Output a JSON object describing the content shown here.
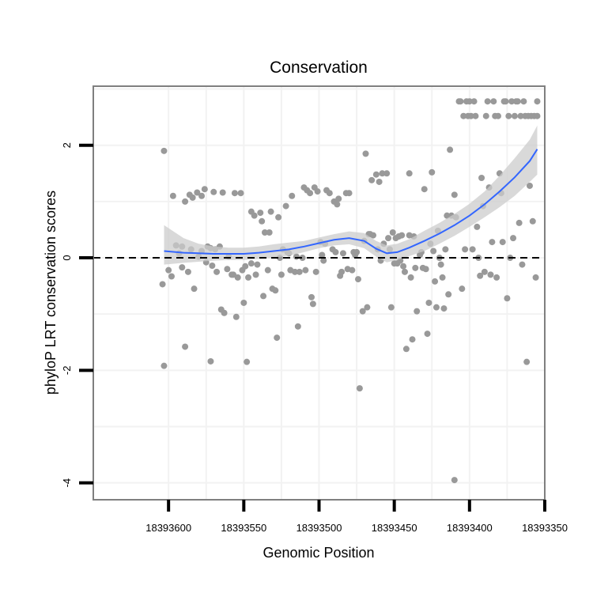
{
  "chart_data": {
    "type": "scatter",
    "title": "Conservation",
    "xlabel": "Genomic Position",
    "ylabel": "phyloP LRT conservation scores",
    "x_reversed": true,
    "xlim": [
      18393650,
      18393350
    ],
    "ylim": [
      -4.3,
      3.05
    ],
    "x_ticks": [
      18393600,
      18393550,
      18393500,
      18393450,
      18393400,
      18393350
    ],
    "x_tick_labels": [
      "18393600",
      "18393550",
      "18393500",
      "18393450",
      "18393400",
      "18393350"
    ],
    "y_ticks": [
      2,
      0,
      -2,
      -4
    ],
    "y_tick_labels": [
      "2",
      "0",
      "-2",
      "-4"
    ],
    "reference_line": {
      "y": 0,
      "style": "dashed"
    },
    "grid": true,
    "colors": {
      "points": "#999999",
      "smooth_line": "#3366ff",
      "smooth_band": "#cccccc",
      "grid": "#f2f2f2",
      "frame": "#7f7f7f"
    },
    "points": [
      [
        18393603,
        1.9
      ],
      [
        18393603,
        -1.92
      ],
      [
        18393604,
        -0.47
      ],
      [
        18393600,
        -0.22
      ],
      [
        18393598,
        -0.33
      ],
      [
        18393597,
        1.1
      ],
      [
        18393595,
        0.22
      ],
      [
        18393593,
        0.08
      ],
      [
        18393591,
        0.2
      ],
      [
        18393591,
        -0.17
      ],
      [
        18393589,
        -1.58
      ],
      [
        18393589,
        1.0
      ],
      [
        18393587,
        -0.25
      ],
      [
        18393586,
        1.12
      ],
      [
        18393585,
        0.15
      ],
      [
        18393584,
        1.07
      ],
      [
        18393583,
        -0.55
      ],
      [
        18393581,
        1.16
      ],
      [
        18393580,
        0.02
      ],
      [
        18393578,
        1.1
      ],
      [
        18393578,
        0.12
      ],
      [
        18393576,
        1.22
      ],
      [
        18393575,
        -0.08
      ],
      [
        18393574,
        0.2
      ],
      [
        18393572,
        0.17
      ],
      [
        18393572,
        -1.84
      ],
      [
        18393571,
        -0.14
      ],
      [
        18393570,
        1.17
      ],
      [
        18393569,
        0.15
      ],
      [
        18393568,
        -0.25
      ],
      [
        18393566,
        0.2
      ],
      [
        18393565,
        -0.92
      ],
      [
        18393564,
        1.16
      ],
      [
        18393563,
        -0.98
      ],
      [
        18393561,
        -0.2
      ],
      [
        18393560,
        0.02
      ],
      [
        18393558,
        -0.3
      ],
      [
        18393557,
        -0.3
      ],
      [
        18393556,
        1.15
      ],
      [
        18393555,
        -1.05
      ],
      [
        18393554,
        -0.35
      ],
      [
        18393552,
        1.15
      ],
      [
        18393551,
        -0.22
      ],
      [
        18393550,
        -0.8
      ],
      [
        18393549,
        -0.15
      ],
      [
        18393548,
        -1.85
      ],
      [
        18393547,
        -0.35
      ],
      [
        18393545,
        0.82
      ],
      [
        18393545,
        -0.1
      ],
      [
        18393543,
        0.75
      ],
      [
        18393542,
        -0.3
      ],
      [
        18393541,
        -0.12
      ],
      [
        18393539,
        0.8
      ],
      [
        18393538,
        0.65
      ],
      [
        18393537,
        -0.68
      ],
      [
        18393536,
        0.45
      ],
      [
        18393534,
        -0.22
      ],
      [
        18393533,
        0.45
      ],
      [
        18393532,
        0.82
      ],
      [
        18393531,
        -0.55
      ],
      [
        18393529,
        -0.58
      ],
      [
        18393528,
        -1.42
      ],
      [
        18393527,
        0.72
      ],
      [
        18393526,
        0.0
      ],
      [
        18393525,
        -0.3
      ],
      [
        18393524,
        0.15
      ],
      [
        18393522,
        0.92
      ],
      [
        18393521,
        0.1
      ],
      [
        18393520,
        0.08
      ],
      [
        18393519,
        -0.22
      ],
      [
        18393518,
        1.1
      ],
      [
        18393516,
        -0.25
      ],
      [
        18393515,
        0.02
      ],
      [
        18393514,
        -1.22
      ],
      [
        18393513,
        -0.25
      ],
      [
        18393511,
        0.0
      ],
      [
        18393510,
        1.25
      ],
      [
        18393509,
        -0.22
      ],
      [
        18393508,
        1.2
      ],
      [
        18393506,
        1.15
      ],
      [
        18393505,
        -0.7
      ],
      [
        18393504,
        -0.82
      ],
      [
        18393503,
        1.25
      ],
      [
        18393502,
        -0.25
      ],
      [
        18393501,
        1.18
      ],
      [
        18393499,
        0.28
      ],
      [
        18393498,
        0.05
      ],
      [
        18393497,
        -0.05
      ],
      [
        18393496,
        0.25
      ],
      [
        18393495,
        1.2
      ],
      [
        18393493,
        1.15
      ],
      [
        18393491,
        0.15
      ],
      [
        18393490,
        1.0
      ],
      [
        18393489,
        0.1
      ],
      [
        18393488,
        0.95
      ],
      [
        18393487,
        1.05
      ],
      [
        18393486,
        -0.32
      ],
      [
        18393485,
        -0.25
      ],
      [
        18393484,
        0.08
      ],
      [
        18393482,
        1.15
      ],
      [
        18393481,
        -0.2
      ],
      [
        18393480,
        1.15
      ],
      [
        18393478,
        -0.22
      ],
      [
        18393477,
        0.1
      ],
      [
        18393476,
        0.05
      ],
      [
        18393475,
        0.1
      ],
      [
        18393474,
        -0.38
      ],
      [
        18393473,
        -2.32
      ],
      [
        18393471,
        -0.95
      ],
      [
        18393470,
        0.3
      ],
      [
        18393469,
        1.85
      ],
      [
        18393468,
        -0.88
      ],
      [
        18393467,
        0.42
      ],
      [
        18393466,
        0.42
      ],
      [
        18393465,
        1.38
      ],
      [
        18393464,
        0.4
      ],
      [
        18393462,
        1.48
      ],
      [
        18393461,
        0.15
      ],
      [
        18393460,
        1.35
      ],
      [
        18393459,
        -0.05
      ],
      [
        18393458,
        1.5
      ],
      [
        18393457,
        0.25
      ],
      [
        18393455,
        1.5
      ],
      [
        18393454,
        0.35
      ],
      [
        18393453,
        0.15
      ],
      [
        18393452,
        -0.88
      ],
      [
        18393451,
        0.45
      ],
      [
        18393450,
        -0.1
      ],
      [
        18393449,
        0.35
      ],
      [
        18393448,
        -0.1
      ],
      [
        18393447,
        0.38
      ],
      [
        18393446,
        -0.05
      ],
      [
        18393445,
        0.4
      ],
      [
        18393444,
        -0.15
      ],
      [
        18393443,
        -0.25
      ],
      [
        18393442,
        -1.62
      ],
      [
        18393440,
        1.5
      ],
      [
        18393440,
        0.4
      ],
      [
        18393439,
        -0.35
      ],
      [
        18393438,
        -1.45
      ],
      [
        18393437,
        0.38
      ],
      [
        18393436,
        -0.18
      ],
      [
        18393435,
        -0.95
      ],
      [
        18393433,
        0.05
      ],
      [
        18393432,
        0.1
      ],
      [
        18393431,
        -0.18
      ],
      [
        18393430,
        1.22
      ],
      [
        18393429,
        -0.2
      ],
      [
        18393428,
        -1.35
      ],
      [
        18393427,
        -0.8
      ],
      [
        18393426,
        0.25
      ],
      [
        18393425,
        1.52
      ],
      [
        18393424,
        0.12
      ],
      [
        18393423,
        -0.42
      ],
      [
        18393422,
        -0.88
      ],
      [
        18393421,
        0.48
      ],
      [
        18393420,
        0.0
      ],
      [
        18393419,
        -0.12
      ],
      [
        18393418,
        -0.35
      ],
      [
        18393417,
        -0.9
      ],
      [
        18393416,
        0.15
      ],
      [
        18393415,
        0.75
      ],
      [
        18393414,
        -0.65
      ],
      [
        18393413,
        1.92
      ],
      [
        18393412,
        0.75
      ],
      [
        18393410,
        1.12
      ],
      [
        18393410,
        -3.95
      ],
      [
        18393409,
        0.72
      ],
      [
        18393407,
        2.78
      ],
      [
        18393406,
        2.78
      ],
      [
        18393405,
        -0.55
      ],
      [
        18393404,
        2.52
      ],
      [
        18393403,
        0.15
      ],
      [
        18393402,
        2.78
      ],
      [
        18393401,
        2.52
      ],
      [
        18393400,
        2.78
      ],
      [
        18393399,
        2.52
      ],
      [
        18393398,
        0.15
      ],
      [
        18393397,
        2.78
      ],
      [
        18393396,
        2.52
      ],
      [
        18393395,
        0.55
      ],
      [
        18393394,
        0.0
      ],
      [
        18393393,
        -0.32
      ],
      [
        18393392,
        1.42
      ],
      [
        18393391,
        0.92
      ],
      [
        18393390,
        -0.25
      ],
      [
        18393389,
        2.52
      ],
      [
        18393388,
        2.78
      ],
      [
        18393387,
        1.25
      ],
      [
        18393386,
        -0.3
      ],
      [
        18393385,
        0.28
      ],
      [
        18393384,
        2.78
      ],
      [
        18393383,
        2.52
      ],
      [
        18393382,
        -0.35
      ],
      [
        18393381,
        2.52
      ],
      [
        18393380,
        1.5
      ],
      [
        18393379,
        1.15
      ],
      [
        18393378,
        0.28
      ],
      [
        18393377,
        2.78
      ],
      [
        18393376,
        2.78
      ],
      [
        18393375,
        -0.72
      ],
      [
        18393374,
        2.52
      ],
      [
        18393373,
        0.0
      ],
      [
        18393372,
        2.78
      ],
      [
        18393371,
        0.35
      ],
      [
        18393370,
        2.52
      ],
      [
        18393369,
        2.78
      ],
      [
        18393368,
        2.78
      ],
      [
        18393367,
        0.62
      ],
      [
        18393366,
        2.52
      ],
      [
        18393365,
        -0.12
      ],
      [
        18393364,
        2.78
      ],
      [
        18393363,
        2.52
      ],
      [
        18393362,
        -1.85
      ],
      [
        18393361,
        2.52
      ],
      [
        18393360,
        1.28
      ],
      [
        18393359,
        2.52
      ],
      [
        18393358,
        0.65
      ],
      [
        18393357,
        2.52
      ],
      [
        18393356,
        -0.35
      ],
      [
        18393355,
        2.78
      ],
      [
        18393355,
        2.52
      ]
    ],
    "smooth": {
      "x": [
        18393603,
        18393590,
        18393580,
        18393570,
        18393560,
        18393550,
        18393540,
        18393530,
        18393520,
        18393510,
        18393500,
        18393490,
        18393480,
        18393470,
        18393462,
        18393455,
        18393448,
        18393440,
        18393430,
        18393420,
        18393410,
        18393400,
        18393390,
        18393380,
        18393370,
        18393360,
        18393355
      ],
      "y": [
        0.12,
        0.09,
        0.08,
        0.07,
        0.07,
        0.07,
        0.09,
        0.12,
        0.15,
        0.2,
        0.26,
        0.32,
        0.35,
        0.3,
        0.16,
        0.08,
        0.1,
        0.18,
        0.3,
        0.43,
        0.58,
        0.75,
        0.95,
        1.18,
        1.43,
        1.72,
        1.93
      ],
      "lower": [
        -0.12,
        -0.09,
        -0.07,
        -0.05,
        -0.04,
        -0.04,
        -0.02,
        0.0,
        0.04,
        0.1,
        0.17,
        0.22,
        0.24,
        0.17,
        0.02,
        -0.08,
        -0.04,
        0.03,
        0.12,
        0.25,
        0.39,
        0.55,
        0.72,
        0.9,
        1.1,
        1.35,
        1.48
      ],
      "upper": [
        0.58,
        0.35,
        0.25,
        0.2,
        0.18,
        0.18,
        0.2,
        0.24,
        0.27,
        0.3,
        0.36,
        0.42,
        0.47,
        0.44,
        0.3,
        0.22,
        0.25,
        0.33,
        0.48,
        0.62,
        0.78,
        0.96,
        1.18,
        1.46,
        1.77,
        2.1,
        2.35
      ]
    }
  }
}
